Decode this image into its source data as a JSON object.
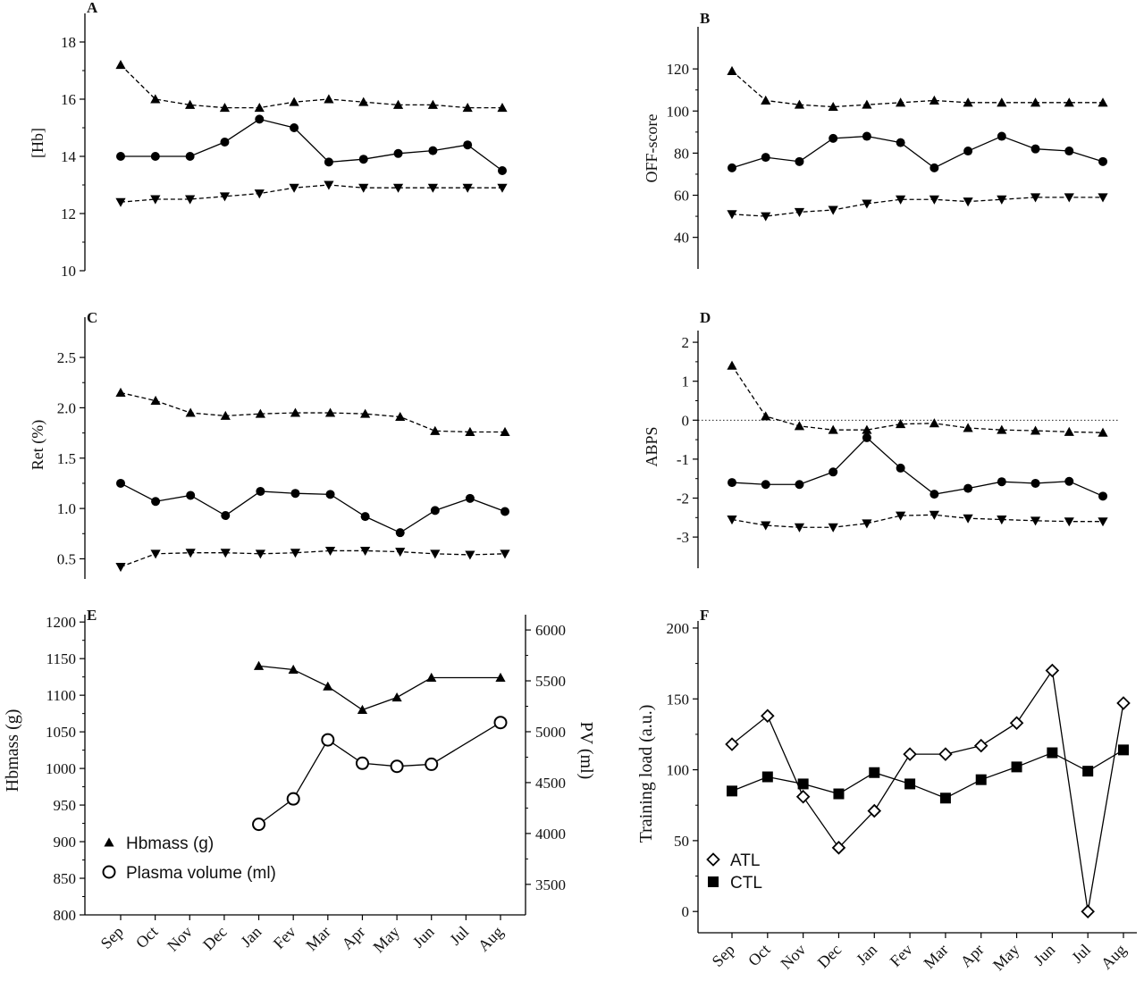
{
  "chart_data": [
    {
      "panel": "A",
      "type": "line",
      "categories": [
        "Sep",
        "Oct",
        "Nov",
        "Dec",
        "Jan",
        "Fev",
        "Mar",
        "Apr",
        "May",
        "Jun",
        "Jul",
        "Aug"
      ],
      "ylabel": "[Hb]",
      "ylim": [
        10,
        19
      ],
      "yticks": [
        10,
        12,
        14,
        16,
        18
      ],
      "series": [
        {
          "marker": "triangle-up",
          "style": "dashed",
          "values": [
            17.2,
            16.0,
            15.8,
            15.7,
            15.7,
            15.9,
            16.0,
            15.9,
            15.8,
            15.8,
            15.7,
            15.7
          ]
        },
        {
          "marker": "circle",
          "style": "solid",
          "values": [
            14.0,
            14.0,
            14.0,
            14.5,
            15.3,
            15.0,
            13.8,
            13.9,
            14.1,
            14.2,
            14.4,
            13.5
          ]
        },
        {
          "marker": "triangle-down",
          "style": "dashed",
          "values": [
            12.4,
            12.5,
            12.5,
            12.6,
            12.7,
            12.9,
            13.0,
            12.9,
            12.9,
            12.9,
            12.9,
            12.9
          ]
        }
      ]
    },
    {
      "panel": "B",
      "type": "line",
      "categories": [
        "Sep",
        "Oct",
        "Nov",
        "Dec",
        "Jan",
        "Fev",
        "Mar",
        "Apr",
        "May",
        "Jun",
        "Jul",
        "Aug"
      ],
      "ylabel": "OFF-score",
      "ylim": [
        25,
        140
      ],
      "yticks": [
        40,
        60,
        80,
        100,
        120
      ],
      "series": [
        {
          "marker": "triangle-up",
          "style": "dashed",
          "values": [
            119,
            105,
            103,
            102,
            103,
            104,
            105,
            104,
            104,
            104,
            104,
            104
          ]
        },
        {
          "marker": "circle",
          "style": "solid",
          "values": [
            73,
            78,
            76,
            87,
            88,
            85,
            73,
            81,
            88,
            82,
            81,
            76
          ]
        },
        {
          "marker": "triangle-down",
          "style": "dashed",
          "values": [
            51,
            50,
            52,
            53,
            56,
            58,
            58,
            57,
            58,
            59,
            59,
            59
          ]
        }
      ]
    },
    {
      "panel": "C",
      "type": "line",
      "categories": [
        "Sep",
        "Oct",
        "Nov",
        "Dec",
        "Jan",
        "Fev",
        "Mar",
        "Apr",
        "May",
        "Jun",
        "Jul",
        "Aug"
      ],
      "ylabel": "Ret (%)",
      "ylim": [
        0.3,
        2.9
      ],
      "yticks": [
        0.5,
        1.0,
        1.5,
        2.0,
        2.5
      ],
      "ytick_labels": [
        "0.5",
        "1.0",
        "1.5",
        "2.0",
        "2.5"
      ],
      "series": [
        {
          "marker": "triangle-up",
          "style": "dashed",
          "values": [
            2.15,
            2.07,
            1.95,
            1.92,
            1.94,
            1.95,
            1.95,
            1.94,
            1.91,
            1.77,
            1.76,
            1.76
          ]
        },
        {
          "marker": "circle",
          "style": "solid",
          "values": [
            1.25,
            1.07,
            1.13,
            0.93,
            1.17,
            1.15,
            1.14,
            0.92,
            0.76,
            0.98,
            1.1,
            0.97
          ]
        },
        {
          "marker": "triangle-down",
          "style": "dashed",
          "values": [
            0.42,
            0.55,
            0.56,
            0.56,
            0.55,
            0.56,
            0.58,
            0.58,
            0.57,
            0.55,
            0.54,
            0.55
          ]
        }
      ]
    },
    {
      "panel": "D",
      "type": "line",
      "categories": [
        "Sep",
        "Oct",
        "Nov",
        "Dec",
        "Jan",
        "Fev",
        "Mar",
        "Apr",
        "May",
        "Jun",
        "Jul",
        "Aug"
      ],
      "ylabel": "ABPS",
      "ylim": [
        -3.8,
        2.3
      ],
      "yticks": [
        -3,
        -2,
        -1,
        0,
        1,
        2
      ],
      "reference_line": 0,
      "series": [
        {
          "marker": "triangle-up",
          "style": "dashed",
          "values": [
            1.4,
            0.1,
            -0.15,
            -0.25,
            -0.25,
            -0.1,
            -0.08,
            -0.2,
            -0.25,
            -0.27,
            -0.3,
            -0.32
          ]
        },
        {
          "marker": "circle",
          "style": "solid",
          "values": [
            -1.6,
            -1.65,
            -1.65,
            -1.33,
            -0.45,
            -1.23,
            -1.9,
            -1.75,
            -1.58,
            -1.62,
            -1.57,
            -1.95
          ]
        },
        {
          "marker": "triangle-down",
          "style": "dashed",
          "values": [
            -2.55,
            -2.7,
            -2.75,
            -2.75,
            -2.65,
            -2.45,
            -2.43,
            -2.52,
            -2.55,
            -2.58,
            -2.6,
            -2.6
          ]
        }
      ]
    },
    {
      "panel": "E",
      "type": "line",
      "categories": [
        "Sep",
        "Oct",
        "Nov",
        "Dec",
        "Jan",
        "Fev",
        "Mar",
        "Apr",
        "May",
        "Jun",
        "Jul",
        "Aug"
      ],
      "ylabel": "Hbmass (g)",
      "ylabel_right": "PV (ml)",
      "ylim": [
        800,
        1210
      ],
      "yticks": [
        800,
        850,
        900,
        950,
        1000,
        1050,
        1100,
        1150,
        1200
      ],
      "ylim_right": [
        3200,
        6150
      ],
      "yticks_right": [
        3500,
        4000,
        4500,
        5000,
        5500,
        6000
      ],
      "series": [
        {
          "name": "Hbmass (g)",
          "marker": "triangle-up",
          "style": "solid",
          "axis": "left",
          "values": [
            null,
            null,
            null,
            null,
            1140,
            1135,
            1112,
            1080,
            1097,
            1124,
            null,
            1124
          ]
        },
        {
          "name": "Plasma volume (ml)",
          "marker": "open-circle",
          "style": "solid",
          "axis": "right",
          "values": [
            null,
            null,
            null,
            null,
            4090,
            4340,
            4920,
            4690,
            4660,
            4680,
            null,
            5090
          ]
        }
      ]
    },
    {
      "panel": "F",
      "type": "line",
      "categories": [
        "Sep",
        "Oct",
        "Nov",
        "Dec",
        "Jan",
        "Fev",
        "Mar",
        "Apr",
        "May",
        "Jun",
        "Jul",
        "Aug"
      ],
      "ylabel": "Training load (a.u.)",
      "ylim": [
        -15,
        205
      ],
      "yticks": [
        0,
        50,
        100,
        150,
        200
      ],
      "series": [
        {
          "name": "ATL",
          "marker": "open-diamond",
          "style": "solid",
          "values": [
            118,
            138,
            81,
            45,
            71,
            111,
            111,
            117,
            133,
            170,
            0,
            147
          ]
        },
        {
          "name": "CTL",
          "marker": "square",
          "style": "solid",
          "values": [
            85,
            95,
            90,
            83,
            98,
            90,
            80,
            93,
            102,
            112,
            99,
            114
          ]
        }
      ]
    }
  ]
}
